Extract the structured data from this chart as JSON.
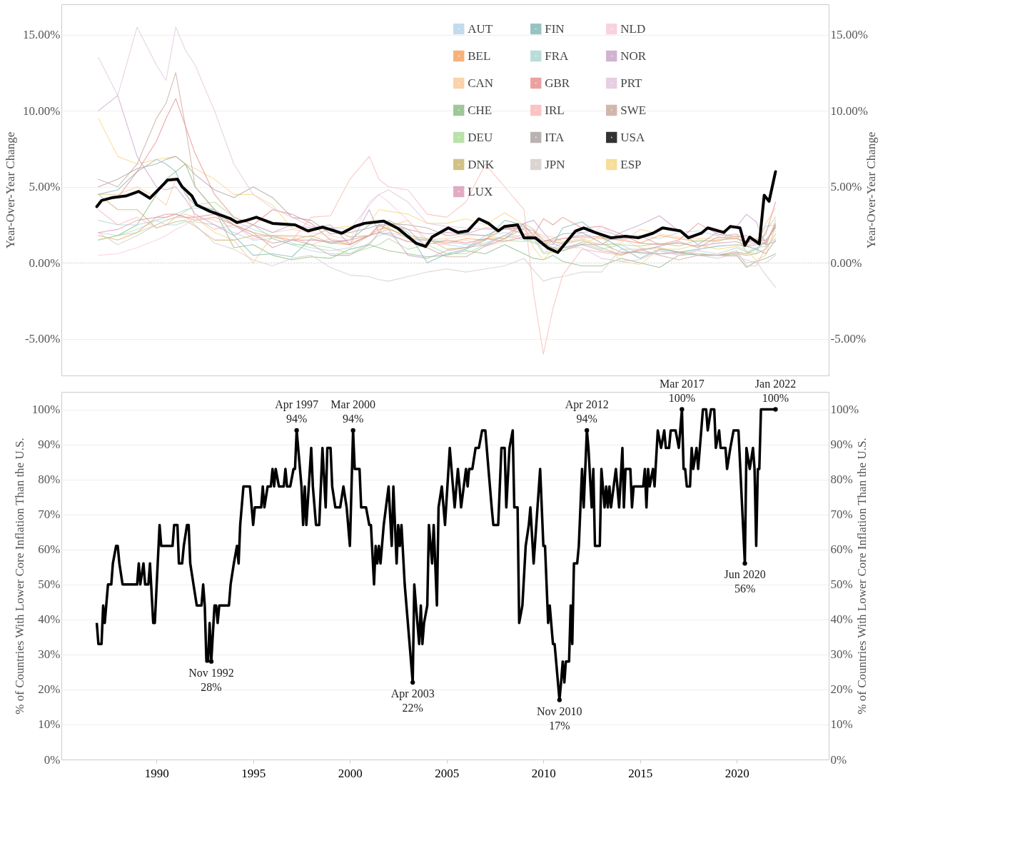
{
  "chart_data": [
    {
      "type": "line",
      "ylabel": "Year-Over-Year Change",
      "y2label": "Year-Over-Year Change",
      "xlim": [
        "1985-02",
        "2024-10"
      ],
      "ylim": [
        -7.4,
        17
      ],
      "y2lim": [
        -7.4,
        17
      ],
      "yticks": [
        {
          "value": -5,
          "label": "-5.00%"
        },
        {
          "value": 0,
          "label": "0.00%"
        },
        {
          "value": 5,
          "label": "5.00%"
        },
        {
          "value": 10,
          "label": "10.00%"
        },
        {
          "value": 15,
          "label": "15.00%"
        }
      ],
      "y2ticks": [
        {
          "value": -5,
          "label": "-5.00%"
        },
        {
          "value": 0,
          "label": "0.00%"
        },
        {
          "value": 5,
          "label": "5.00%"
        },
        {
          "value": 10,
          "label": "10.00%"
        },
        {
          "value": 15,
          "label": "15.00%"
        }
      ],
      "tick_labels": "y",
      "grid": "y",
      "legend": "top",
      "ref_lines": [
        {
          "axis": "y",
          "value": 0,
          "line_style": "dotted",
          "color": "#c8c8c8"
        }
      ],
      "x": [
        "1987-01",
        "1988-01",
        "1989-01",
        "1990-01",
        "1990-07",
        "1991-01",
        "1991-07",
        "1992-01",
        "1993-01",
        "1994-01",
        "1995-01",
        "1996-01",
        "1997-01",
        "1998-01",
        "1999-01",
        "2000-01",
        "2001-01",
        "2001-07",
        "2002-01",
        "2003-01",
        "2004-01",
        "2005-01",
        "2006-01",
        "2007-01",
        "2008-01",
        "2009-01",
        "2009-07",
        "2010-01",
        "2010-07",
        "2011-01",
        "2012-01",
        "2013-01",
        "2014-01",
        "2015-01",
        "2016-01",
        "2017-01",
        "2018-01",
        "2019-01",
        "2020-01",
        "2020-07",
        "2021-01",
        "2021-07",
        "2022-01"
      ],
      "series": [
        {
          "name": "AUT",
          "color": "#b3d3ea",
          "values": [
            2.0,
            1.8,
            2.2,
            2.8,
            3.0,
            3.2,
            3.5,
            3.6,
            3.5,
            2.8,
            2.2,
            1.8,
            1.3,
            1.0,
            0.8,
            1.0,
            1.8,
            2.0,
            1.8,
            1.4,
            1.5,
            1.2,
            1.0,
            1.8,
            2.0,
            1.6,
            1.4,
            1.2,
            1.0,
            1.3,
            2.0,
            2.1,
            1.8,
            1.8,
            1.6,
            2.0,
            2.1,
            1.8,
            1.9,
            1.4,
            1.3,
            2.4,
            2.5
          ]
        },
        {
          "name": "BEL",
          "color": "#f5a05a",
          "values": [
            1.8,
            1.5,
            2.0,
            3.0,
            3.0,
            3.2,
            3.0,
            2.8,
            3.0,
            2.5,
            2.0,
            1.7,
            1.5,
            1.8,
            1.3,
            1.2,
            1.8,
            2.2,
            2.3,
            1.6,
            1.5,
            1.3,
            1.6,
            1.5,
            2.3,
            2.2,
            1.6,
            1.3,
            1.4,
            1.6,
            1.7,
            1.6,
            1.5,
            1.3,
            1.8,
            1.6,
            1.4,
            1.5,
            1.6,
            1.3,
            1.6,
            1.2,
            2.5
          ]
        },
        {
          "name": "CAN",
          "color": "#fbc894",
          "values": [
            4.5,
            4.5,
            5.0,
            4.3,
            3.8,
            5.5,
            4.8,
            3.0,
            2.0,
            1.5,
            0.0,
            1.8,
            1.7,
            1.2,
            1.6,
            1.3,
            1.8,
            2.2,
            2.4,
            2.8,
            1.5,
            1.6,
            1.8,
            1.8,
            1.6,
            1.9,
            2.0,
            1.8,
            1.7,
            1.4,
            1.6,
            1.2,
            1.3,
            2.2,
            1.9,
            1.7,
            1.6,
            1.6,
            1.9,
            1.2,
            1.3,
            2.6,
            3.6
          ]
        },
        {
          "name": "CHE",
          "color": "#86bb7e",
          "values": [
            1.5,
            1.8,
            2.5,
            4.5,
            5.5,
            6.0,
            6.5,
            5.0,
            3.5,
            1.0,
            1.2,
            0.5,
            0.2,
            0.4,
            0.3,
            0.9,
            1.2,
            1.0,
            0.8,
            0.6,
            0.4,
            0.5,
            0.8,
            0.6,
            1.2,
            0.6,
            0.3,
            0.2,
            0.5,
            0.1,
            -0.2,
            -0.2,
            0.3,
            0.0,
            -0.3,
            0.5,
            0.6,
            0.5,
            0.5,
            -0.3,
            0.1,
            0.3,
            0.6
          ]
        },
        {
          "name": "DEU",
          "color": "#a8dc94",
          "values": [
            1.5,
            1.8,
            2.0,
            2.5,
            2.8,
            3.0,
            3.4,
            3.8,
            4.0,
            3.0,
            2.5,
            1.6,
            1.2,
            1.2,
            1.0,
            0.6,
            1.0,
            1.2,
            1.6,
            0.9,
            1.2,
            0.6,
            0.6,
            1.2,
            1.5,
            1.4,
            1.6,
            0.6,
            0.7,
            0.8,
            1.4,
            1.2,
            1.2,
            1.1,
            1.3,
            1.1,
            1.5,
            1.4,
            1.8,
            0.7,
            0.6,
            2.1,
            3.0
          ]
        },
        {
          "name": "DNK",
          "color": "#c8b26a",
          "values": [
            4.5,
            3.5,
            3.5,
            2.3,
            2.5,
            2.7,
            2.8,
            2.4,
            1.5,
            1.5,
            1.8,
            1.8,
            1.8,
            1.7,
            2.3,
            1.7,
            1.8,
            2.5,
            2.2,
            1.8,
            1.6,
            0.9,
            1.0,
            1.6,
            1.6,
            2.6,
            2.2,
            1.5,
            1.4,
            1.3,
            1.5,
            1.0,
            0.5,
            0.9,
            1.0,
            0.7,
            0.6,
            0.5,
            0.6,
            0.5,
            0.6,
            0.9,
            1.9
          ]
        },
        {
          "name": "ESP",
          "color": "#f5d680",
          "values": [
            9.5,
            7.0,
            6.5,
            6.8,
            6.9,
            7.0,
            6.5,
            6.2,
            5.5,
            4.5,
            4.5,
            3.8,
            2.3,
            2.2,
            2.3,
            2.4,
            2.6,
            3.5,
            3.4,
            3.2,
            2.6,
            2.6,
            2.9,
            2.5,
            3.3,
            2.5,
            1.0,
            0.2,
            0.9,
            1.0,
            1.2,
            1.8,
            0.1,
            -0.1,
            0.9,
            0.9,
            1.2,
            0.9,
            1.1,
            0.8,
            0.2,
            0.5,
            2.4
          ]
        },
        {
          "name": "FIN",
          "color": "#7fb5b3",
          "values": [
            4.5,
            4.8,
            6.0,
            6.8,
            6.5,
            6.0,
            4.5,
            3.8,
            3.5,
            1.8,
            0.5,
            0.6,
            0.4,
            1.6,
            1.3,
            1.5,
            2.5,
            2.8,
            2.7,
            2.0,
            0.0,
            0.6,
            0.9,
            1.5,
            2.8,
            2.5,
            1.8,
            1.3,
            1.2,
            2.3,
            2.7,
            1.7,
            1.0,
            0.3,
            0.9,
            0.7,
            0.9,
            1.1,
            1.2,
            1.1,
            0.9,
            1.4,
            2.4
          ]
        },
        {
          "name": "FRA",
          "color": "#a9d5cf",
          "values": [
            2.8,
            2.5,
            2.5,
            2.8,
            2.5,
            2.5,
            2.7,
            2.7,
            2.5,
            2.0,
            1.5,
            1.6,
            1.2,
            0.8,
            0.6,
            0.6,
            1.3,
            1.8,
            2.0,
            1.7,
            1.5,
            1.4,
            1.2,
            1.3,
            1.8,
            1.5,
            1.3,
            1.1,
            1.0,
            1.0,
            1.3,
            0.9,
            1.2,
            0.6,
            0.6,
            0.6,
            0.8,
            0.6,
            1.0,
            0.7,
            1.0,
            1.1,
            1.6
          ]
        },
        {
          "name": "GBR",
          "color": "#e88a8a",
          "values": [
            4.0,
            4.3,
            6.0,
            8.0,
            9.5,
            10.8,
            9.0,
            7.2,
            4.5,
            3.0,
            2.5,
            3.5,
            3.2,
            2.6,
            1.5,
            1.2,
            1.8,
            2.0,
            1.9,
            1.4,
            1.2,
            1.5,
            1.3,
            1.6,
            1.4,
            1.7,
            1.8,
            2.9,
            2.5,
            3.0,
            2.3,
            2.4,
            1.9,
            1.3,
            1.2,
            1.5,
            2.6,
            1.9,
            1.7,
            1.8,
            1.3,
            1.9,
            4.0
          ]
        },
        {
          "name": "IRL",
          "color": "#f9b6b4",
          "values": [
            3.5,
            2.5,
            3.0,
            2.3,
            2.5,
            3.0,
            3.2,
            3.0,
            2.2,
            2.5,
            1.6,
            1.8,
            1.5,
            3.0,
            3.1,
            5.5,
            7.0,
            5.5,
            5.0,
            4.8,
            3.2,
            3.0,
            4.0,
            6.5,
            5.0,
            3.5,
            -2.0,
            -6.0,
            -3.0,
            -0.8,
            0.9,
            0.7,
            0.5,
            0.9,
            0.5,
            0.2,
            0.5,
            0.5,
            0.8,
            -0.2,
            -0.2,
            1.0,
            2.8
          ]
        },
        {
          "name": "ITA",
          "color": "#a8a0a0",
          "values": [
            5.0,
            5.5,
            6.2,
            6.5,
            6.8,
            7.0,
            6.5,
            5.8,
            4.8,
            4.3,
            5.0,
            4.3,
            3.0,
            2.8,
            1.9,
            2.0,
            2.3,
            2.5,
            2.6,
            2.5,
            2.3,
            1.8,
            1.9,
            1.8,
            2.3,
            1.9,
            1.6,
            1.4,
            1.6,
            1.9,
            2.0,
            1.3,
            0.7,
            0.7,
            0.6,
            0.7,
            0.5,
            0.5,
            0.7,
            0.6,
            0.9,
            0.6,
            1.5
          ]
        },
        {
          "name": "JPN",
          "color": "#d3cbc8",
          "values": [
            2.0,
            1.2,
            1.8,
            2.5,
            2.8,
            3.0,
            3.0,
            2.5,
            1.3,
            0.9,
            0.2,
            -0.2,
            0.3,
            0.5,
            -0.3,
            -0.8,
            -0.9,
            -1.1,
            -1.2,
            -0.9,
            -0.6,
            -0.4,
            -0.6,
            -0.4,
            -0.2,
            0.3,
            -0.5,
            -1.2,
            -1.0,
            -0.9,
            -0.6,
            -0.6,
            0.9,
            0.9,
            0.5,
            0.2,
            0.5,
            0.3,
            0.6,
            0.0,
            0.1,
            -0.8,
            -1.6
          ]
        },
        {
          "name": "LUX",
          "color": "#dc97b3",
          "values": [
            2.0,
            2.2,
            2.8,
            3.0,
            3.2,
            3.2,
            3.0,
            3.0,
            3.2,
            2.5,
            1.8,
            1.3,
            1.5,
            1.5,
            1.4,
            1.5,
            1.8,
            2.4,
            2.5,
            2.2,
            1.9,
            2.0,
            1.9,
            2.3,
            2.2,
            2.4,
            1.8,
            1.4,
            1.5,
            1.6,
            1.8,
            1.7,
            1.5,
            1.8,
            1.2,
            1.3,
            1.1,
            1.3,
            1.4,
            1.1,
            1.2,
            1.3,
            2.6
          ]
        },
        {
          "name": "NLD",
          "color": "#f8c8d8",
          "values": [
            0.5,
            0.6,
            1.0,
            1.5,
            1.8,
            2.2,
            2.5,
            3.0,
            2.8,
            2.3,
            2.5,
            2.0,
            2.2,
            2.0,
            1.8,
            1.5,
            4.0,
            4.5,
            4.0,
            2.8,
            1.3,
            1.2,
            1.5,
            1.1,
            1.4,
            1.9,
            1.8,
            1.7,
            1.4,
            1.2,
            1.5,
            2.4,
            1.6,
            1.0,
            0.8,
            0.5,
            0.8,
            1.5,
            1.8,
            1.6,
            1.3,
            1.5,
            2.1
          ]
        },
        {
          "name": "NOR",
          "color": "#c6a1c6",
          "values": [
            10.0,
            11.0,
            7.0,
            5.0,
            4.8,
            5.0,
            4.2,
            3.2,
            2.5,
            1.8,
            2.5,
            2.0,
            2.5,
            2.3,
            2.5,
            1.2,
            3.5,
            2.0,
            2.2,
            0.5,
            0.3,
            0.8,
            1.0,
            1.2,
            1.8,
            2.6,
            2.8,
            2.0,
            1.3,
            1.0,
            1.2,
            1.2,
            2.0,
            2.5,
            3.1,
            2.1,
            1.2,
            2.0,
            2.4,
            3.2,
            2.7,
            1.2,
            1.4
          ]
        },
        {
          "name": "PRT",
          "color": "#e0c3dd",
          "values": [
            13.5,
            11.0,
            15.5,
            13.0,
            12.0,
            15.5,
            14.0,
            13.0,
            10.0,
            6.5,
            4.5,
            3.6,
            3.0,
            2.4,
            2.3,
            2.2,
            3.8,
            4.5,
            4.8,
            4.0,
            2.6,
            2.4,
            2.3,
            2.2,
            2.2,
            2.5,
            1.8,
            0.7,
            0.8,
            1.0,
            1.0,
            0.3,
            0.1,
            0.2,
            0.8,
            0.6,
            0.6,
            0.5,
            0.4,
            0.2,
            0.0,
            0.0,
            0.5
          ]
        },
        {
          "name": "SWE",
          "color": "#c6a699",
          "values": [
            5.5,
            5.0,
            6.5,
            9.5,
            10.5,
            12.5,
            9.0,
            5.0,
            3.5,
            2.5,
            2.0,
            1.0,
            1.5,
            1.2,
            0.5,
            0.5,
            1.2,
            2.0,
            2.8,
            2.2,
            1.0,
            0.4,
            0.4,
            1.1,
            1.6,
            2.3,
            2.1,
            1.3,
            1.0,
            0.8,
            1.2,
            0.8,
            0.6,
            0.8,
            1.1,
            1.4,
            1.0,
            1.7,
            1.6,
            1.4,
            1.5,
            1.5,
            2.3
          ]
        },
        {
          "name": "USA",
          "color": "#000000",
          "x": [
            "1986-12",
            "1987-03",
            "1987-10",
            "1988-06",
            "1989-02",
            "1989-09",
            "1990-03",
            "1990-08",
            "1991-02",
            "1991-05",
            "1991-11",
            "1992-02",
            "1992-10",
            "1993-11",
            "1994-03",
            "1994-09",
            "1995-03",
            "1996-01",
            "1997-03",
            "1997-11",
            "1998-08",
            "1999-08",
            "2000-04",
            "2000-10",
            "2001-10",
            "2002-07",
            "2003-06",
            "2003-12",
            "2004-04",
            "2005-02",
            "2005-08",
            "2006-02",
            "2006-09",
            "2007-03",
            "2007-09",
            "2008-01",
            "2008-09",
            "2009-01",
            "2009-08",
            "2010-04",
            "2010-10",
            "2011-09",
            "2012-02",
            "2012-09",
            "2013-07",
            "2014-04",
            "2014-12",
            "2015-09",
            "2016-03",
            "2017-02",
            "2017-07",
            "2018-03",
            "2018-07",
            "2019-05",
            "2019-09",
            "2020-03",
            "2020-06",
            "2020-09",
            "2021-03",
            "2021-06",
            "2021-09",
            "2022-01"
          ],
          "values": [
            3.7,
            4.1,
            4.3,
            4.4,
            4.7,
            4.25,
            4.9,
            5.45,
            5.5,
            5.0,
            4.4,
            3.8,
            3.4,
            2.9,
            2.65,
            2.8,
            3.0,
            2.6,
            2.5,
            2.1,
            2.35,
            1.95,
            2.4,
            2.6,
            2.75,
            2.25,
            1.3,
            1.07,
            1.7,
            2.3,
            2.0,
            2.1,
            2.9,
            2.6,
            2.1,
            2.4,
            2.5,
            1.65,
            1.65,
            0.97,
            0.68,
            2.1,
            2.3,
            2.0,
            1.65,
            1.75,
            1.65,
            1.95,
            2.3,
            2.1,
            1.65,
            1.95,
            2.3,
            2.0,
            2.4,
            2.3,
            1.15,
            1.7,
            1.25,
            4.45,
            4.05,
            6.0
          ]
        }
      ]
    },
    {
      "type": "line",
      "ylabel": "% of Countries With Lower Core Inflation Than the U.S.",
      "y2label": "% of Countries With Lower Core Inflation Than the U.S.",
      "xlim": [
        "1985-02",
        "2024-10"
      ],
      "xticks": [
        "1990",
        "1995",
        "2000",
        "2005",
        "2010",
        "2015",
        "2020"
      ],
      "ylim": [
        0,
        105
      ],
      "y2lim": [
        0,
        105
      ],
      "yticks": [
        {
          "value": 0,
          "label": "0%"
        },
        {
          "value": 10,
          "label": "10%"
        },
        {
          "value": 20,
          "label": "20%"
        },
        {
          "value": 30,
          "label": "30%"
        },
        {
          "value": 40,
          "label": "40%"
        },
        {
          "value": 50,
          "label": "50%"
        },
        {
          "value": 60,
          "label": "60%"
        },
        {
          "value": 70,
          "label": "70%"
        },
        {
          "value": 80,
          "label": "80%"
        },
        {
          "value": 90,
          "label": "90%"
        },
        {
          "value": 100,
          "label": "100%"
        }
      ],
      "y2ticks": [
        {
          "value": 0,
          "label": "0%"
        },
        {
          "value": 10,
          "label": "10%"
        },
        {
          "value": 20,
          "label": "20%"
        },
        {
          "value": 30,
          "label": "30%"
        },
        {
          "value": 40,
          "label": "40%"
        },
        {
          "value": 50,
          "label": "50%"
        },
        {
          "value": 60,
          "label": "60%"
        },
        {
          "value": 70,
          "label": "70%"
        },
        {
          "value": 80,
          "label": "80%"
        },
        {
          "value": 90,
          "label": "90%"
        },
        {
          "value": 100,
          "label": "100%"
        }
      ],
      "grid": "y",
      "annotations": [
        {
          "text": "Nov 1992\n28%",
          "x": "1992-11",
          "y": 28
        },
        {
          "text": "Apr 1997\n94%",
          "x": "1997-04",
          "y": 94
        },
        {
          "text": "Mar 2000\n94%",
          "x": "2000-03",
          "y": 94
        },
        {
          "text": "Apr 2003\n22%",
          "x": "2003-04",
          "y": 22
        },
        {
          "text": "Nov 2010\n17%",
          "x": "2010-11",
          "y": 17
        },
        {
          "text": "Apr 2012\n94%",
          "x": "2012-04",
          "y": 94
        },
        {
          "text": "Mar 2017\n100%",
          "x": "2017-03",
          "y": 100
        },
        {
          "text": "Jun 2020\n56%",
          "x": "2020-06",
          "y": 56
        },
        {
          "text": "Jan 2022\n100%",
          "x": "2022-01",
          "y": 100
        }
      ],
      "series": [
        {
          "color": "#000000",
          "x": [
            "1986-12",
            "1987-01",
            "1987-03",
            "1987-04",
            "1987-05",
            "1987-07",
            "1987-09",
            "1987-10",
            "1987-12",
            "1988-01",
            "1988-02",
            "1988-04",
            "1989-01",
            "1989-02",
            "1989-03",
            "1989-05",
            "1989-06",
            "1989-08",
            "1989-09",
            "1989-11",
            "1989-12",
            "1990-03",
            "1990-04",
            "1990-11",
            "1990-12",
            "1991-02",
            "1991-03",
            "1991-05",
            "1991-06",
            "1991-08",
            "1991-09",
            "1991-10",
            "1991-12",
            "1992-02",
            "1992-05",
            "1992-06",
            "1992-07",
            "1992-08",
            "1992-09",
            "1992-10",
            "1992-11",
            "1993-01",
            "1993-02",
            "1993-03",
            "1993-04",
            "1993-10",
            "1993-11",
            "1994-01",
            "1994-03",
            "1994-04",
            "1994-05",
            "1994-07",
            "1994-11",
            "1995-01",
            "1995-02",
            "1995-06",
            "1995-07",
            "1995-08",
            "1995-10",
            "1995-12",
            "1996-01",
            "1996-02",
            "1996-03",
            "1996-05",
            "1996-08",
            "1996-09",
            "1996-10",
            "1996-12",
            "1997-02",
            "1997-03",
            "1997-04",
            "1997-07",
            "1997-08",
            "1997-09",
            "1997-10",
            "1998-01",
            "1998-02",
            "1998-04",
            "1998-06",
            "1998-08",
            "1998-10",
            "1998-11",
            "1999-01",
            "1999-02",
            "1999-04",
            "1999-07",
            "1999-09",
            "1999-11",
            "2000-01",
            "2000-03",
            "2000-04",
            "2000-07",
            "2000-08",
            "2000-11",
            "2001-01",
            "2001-02",
            "2001-04",
            "2001-05",
            "2001-06",
            "2001-07",
            "2001-08",
            "2001-10",
            "2002-01",
            "2002-03",
            "2002-04",
            "2002-06",
            "2002-07",
            "2002-08",
            "2002-09",
            "2002-11",
            "2003-02",
            "2003-04",
            "2003-05",
            "2003-06",
            "2003-08",
            "2003-09",
            "2003-10",
            "2003-11",
            "2004-01",
            "2004-02",
            "2004-04",
            "2004-05",
            "2004-07",
            "2004-08",
            "2004-10",
            "2004-12",
            "2005-03",
            "2005-06",
            "2005-08",
            "2005-09",
            "2005-10",
            "2006-01",
            "2006-02",
            "2006-03",
            "2006-05",
            "2006-07",
            "2006-09",
            "2006-11",
            "2007-01",
            "2007-03",
            "2007-05",
            "2007-06",
            "2007-09",
            "2007-11",
            "2008-01",
            "2008-02",
            "2008-04",
            "2008-06",
            "2008-07",
            "2008-09",
            "2008-10",
            "2008-12",
            "2009-02",
            "2009-04",
            "2009-05",
            "2009-07",
            "2009-11",
            "2010-01",
            "2010-02",
            "2010-04",
            "2010-05",
            "2010-07",
            "2010-08",
            "2010-11",
            "2010-12",
            "2011-01",
            "2011-02",
            "2011-03",
            "2011-05",
            "2011-06",
            "2011-07",
            "2011-08",
            "2011-10",
            "2011-11",
            "2012-01",
            "2012-02",
            "2012-04",
            "2012-05",
            "2012-07",
            "2012-08",
            "2012-09",
            "2012-12",
            "2013-01",
            "2013-03",
            "2013-04",
            "2013-05",
            "2013-06",
            "2013-07",
            "2013-10",
            "2013-12",
            "2014-02",
            "2014-03",
            "2014-04",
            "2014-07",
            "2014-08",
            "2014-09",
            "2015-03",
            "2015-04",
            "2015-05",
            "2015-06",
            "2015-07",
            "2015-09",
            "2015-10",
            "2015-12",
            "2016-02",
            "2016-04",
            "2016-05",
            "2016-07",
            "2016-08",
            "2016-11",
            "2017-01",
            "2017-03",
            "2017-04",
            "2017-05",
            "2017-06",
            "2017-08",
            "2017-09",
            "2017-10",
            "2017-12",
            "2018-01",
            "2018-03",
            "2018-04",
            "2018-06",
            "2018-07",
            "2018-09",
            "2018-11",
            "2018-12",
            "2019-02",
            "2019-03",
            "2019-06",
            "2019-07",
            "2019-09",
            "2019-11",
            "2020-02",
            "2020-06",
            "2020-07",
            "2020-09",
            "2020-11",
            "2020-12",
            "2021-01",
            "2021-02",
            "2021-03",
            "2021-04",
            "2022-01"
          ],
          "values": [
            39,
            33,
            33,
            44,
            39,
            50,
            50,
            56,
            61,
            61,
            56,
            50,
            50,
            56,
            50,
            56,
            50,
            50,
            56,
            39,
            39,
            67,
            61,
            61,
            67,
            67,
            56,
            56,
            61,
            67,
            67,
            56,
            50,
            44,
            44,
            50,
            44,
            28,
            28,
            39,
            28,
            44,
            44,
            39,
            44,
            44,
            50,
            56,
            61,
            56,
            67,
            78,
            78,
            67,
            72,
            72,
            78,
            72,
            78,
            78,
            83,
            78,
            83,
            78,
            78,
            83,
            78,
            78,
            83,
            83,
            94,
            78,
            67,
            78,
            67,
            89,
            78,
            67,
            67,
            89,
            72,
            89,
            89,
            78,
            72,
            72,
            78,
            72,
            61,
            94,
            83,
            83,
            72,
            72,
            67,
            67,
            50,
            61,
            56,
            61,
            56,
            67,
            78,
            61,
            78,
            56,
            67,
            61,
            67,
            50,
            33,
            22,
            50,
            44,
            33,
            44,
            33,
            39,
            44,
            67,
            56,
            67,
            44,
            72,
            78,
            67,
            89,
            72,
            83,
            78,
            72,
            83,
            78,
            83,
            83,
            89,
            89,
            94,
            94,
            83,
            72,
            67,
            67,
            89,
            89,
            72,
            89,
            94,
            72,
            72,
            39,
            44,
            61,
            67,
            72,
            56,
            83,
            61,
            61,
            39,
            44,
            33,
            33,
            17,
            22,
            28,
            22,
            28,
            28,
            44,
            33,
            56,
            56,
            61,
            83,
            72,
            94,
            89,
            72,
            83,
            61,
            61,
            83,
            72,
            78,
            72,
            78,
            72,
            83,
            72,
            89,
            72,
            83,
            83,
            72,
            78,
            78,
            83,
            72,
            83,
            78,
            83,
            78,
            94,
            89,
            94,
            89,
            89,
            94,
            94,
            89,
            100,
            83,
            83,
            78,
            78,
            89,
            83,
            89,
            83,
            94,
            100,
            100,
            94,
            100,
            100,
            89,
            94,
            89,
            89,
            83,
            89,
            94,
            94,
            56,
            89,
            83,
            89,
            83,
            61,
            83,
            83,
            100,
            100
          ]
        }
      ]
    }
  ]
}
